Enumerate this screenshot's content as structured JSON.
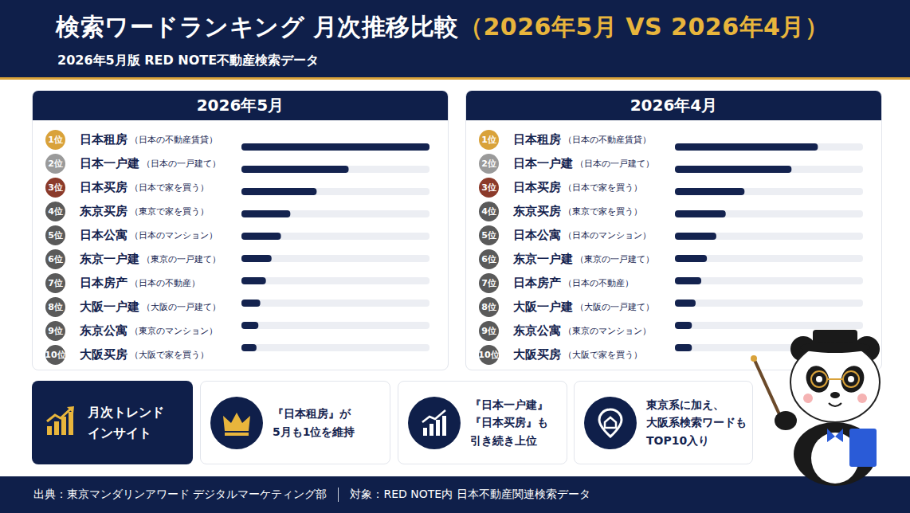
{
  "header": {
    "title": "検索ワードランキング 月次推移比較",
    "title_highlight": "（2026年5月 VS 2026年4月）",
    "subtitle": "2026年5月版 RED NOTE不動産検索データ"
  },
  "chart_data": [
    {
      "type": "bar",
      "orientation": "horizontal",
      "title": "2026年5月",
      "rank_labels": [
        "1位",
        "2位",
        "3位",
        "4位",
        "5位",
        "6位",
        "7位",
        "8位",
        "9位",
        "10位"
      ],
      "categories": [
        "日本租房",
        "日本一户建",
        "日本买房",
        "东京买房",
        "日本公寓",
        "东京一户建",
        "日本房产",
        "大阪一户建",
        "东京公寓",
        "大阪买房"
      ],
      "category_notes": [
        "（日本の不動産賃貸）",
        "（日本の一戸建て）",
        "（日本で家を買う）",
        "（東京で家を買う）",
        "（日本のマンション）",
        "（東京の一戸建て）",
        "（日本の不動産）",
        "（大阪の一戸建て）",
        "（東京のマンション）",
        "（大阪で家を買う）"
      ],
      "values": [
        100,
        57,
        40,
        26,
        21,
        16,
        13,
        10,
        9,
        8
      ],
      "color": "#14234f",
      "xlim": [
        0,
        100
      ],
      "grid": false,
      "tick_labels": false
    },
    {
      "type": "bar",
      "orientation": "horizontal",
      "title": "2026年4月",
      "rank_labels": [
        "1位",
        "2位",
        "3位",
        "4位",
        "5位",
        "6位",
        "7位",
        "8位",
        "9位",
        "10位"
      ],
      "categories": [
        "日本租房",
        "日本一户建",
        "日本买房",
        "东京买房",
        "日本公寓",
        "东京一户建",
        "日本房产",
        "大阪一户建",
        "东京公寓",
        "大阪买房"
      ],
      "category_notes": [
        "（日本の不動産賃貸）",
        "（日本の一戸建て）",
        "（日本で家を買う）",
        "（東京で家を買う）",
        "（日本のマンション）",
        "（東京の一戸建て）",
        "（日本の不動産）",
        "（大阪の一戸建て）",
        "（東京のマンション）",
        "（大阪で家を買う）"
      ],
      "values": [
        76,
        62,
        37,
        27,
        22,
        17,
        14,
        11,
        9,
        9
      ],
      "color": "#14234f",
      "xlim": [
        0,
        100
      ],
      "grid": false,
      "tick_labels": false
    }
  ],
  "insights": {
    "heading": [
      "月次トレンド",
      "インサイト"
    ],
    "items": [
      [
        "『日本租房』が",
        "5月も1位を維持"
      ],
      [
        "『日本一户建』",
        "『日本买房』も",
        "引き続き上位"
      ],
      [
        "東京系に加え、",
        "大阪系検索ワードも",
        "TOP10入り"
      ]
    ]
  },
  "footer": {
    "source": "出典：東京マンダリンアワード デジタルマーケティング部",
    "target": "対象：RED NOTE内 日本不動産関連検索データ"
  }
}
